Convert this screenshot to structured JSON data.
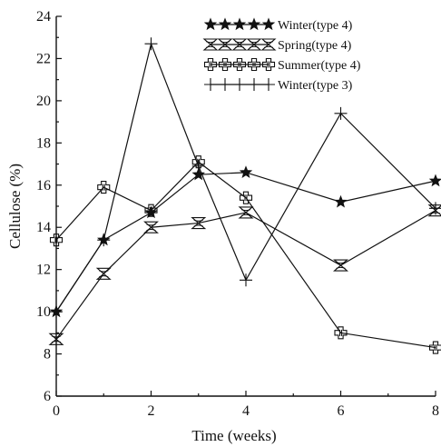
{
  "chart_data": {
    "type": "line",
    "title": "",
    "xlabel": "Time (weeks)",
    "ylabel": "Cellulose (%)",
    "xlim": [
      0,
      8
    ],
    "ylim": [
      6,
      24
    ],
    "xticks": [
      0,
      2,
      4,
      6,
      8
    ],
    "yticks": [
      6,
      8,
      10,
      12,
      14,
      16,
      18,
      20,
      22,
      24
    ],
    "yticks_labels": [
      "6",
      "8",
      "10",
      "12",
      "14",
      "16",
      "18",
      "20",
      "22",
      "24"
    ],
    "grid": false,
    "legend_position": "top-right",
    "series": [
      {
        "name": "Winter(type 4)",
        "marker": "star",
        "x": [
          0,
          1,
          2,
          3,
          4,
          6,
          8
        ],
        "values": [
          10.0,
          13.4,
          14.7,
          16.5,
          16.6,
          15.2,
          16.2
        ]
      },
      {
        "name": "Spring(type 4)",
        "marker": "hourglass",
        "x": [
          0,
          1,
          2,
          3,
          4,
          6,
          8
        ],
        "values": [
          8.7,
          11.8,
          14.0,
          14.2,
          14.7,
          12.2,
          14.8
        ]
      },
      {
        "name": "Summer(type 4)",
        "marker": "cross",
        "x": [
          0,
          1,
          2,
          3,
          4,
          6,
          8
        ],
        "values": [
          13.4,
          15.9,
          14.8,
          17.1,
          15.4,
          9.0,
          8.3
        ]
      },
      {
        "name": "Winter(type 3)",
        "marker": "plus",
        "x": [
          0,
          1,
          2,
          3,
          4,
          6,
          8
        ],
        "values": [
          10.0,
          13.4,
          22.7,
          16.9,
          11.5,
          19.4,
          14.9
        ]
      }
    ]
  }
}
